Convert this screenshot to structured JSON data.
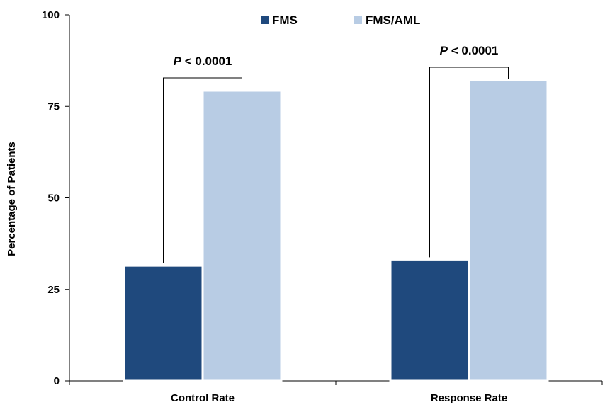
{
  "chart_data": {
    "type": "bar",
    "categories": [
      "Control Rate",
      "Response Rate"
    ],
    "series": [
      {
        "name": "FMS",
        "values": [
          31.5,
          33
        ],
        "color": "#1f497d"
      },
      {
        "name": "FMS/AML",
        "values": [
          79.3,
          82.2
        ],
        "color": "#b8cce4"
      }
    ],
    "ylabel": "Percentage of Patients",
    "ylim": [
      0,
      100
    ],
    "yticks": [
      0,
      25,
      50,
      75,
      100
    ],
    "legend_position": "top",
    "grid": false,
    "annotations": [
      {
        "category": "Control Rate",
        "label_italic": "P",
        "label_rest": " < 0.0001"
      },
      {
        "category": "Response Rate",
        "label_italic": "P",
        "label_rest": " < 0.0001"
      }
    ]
  }
}
